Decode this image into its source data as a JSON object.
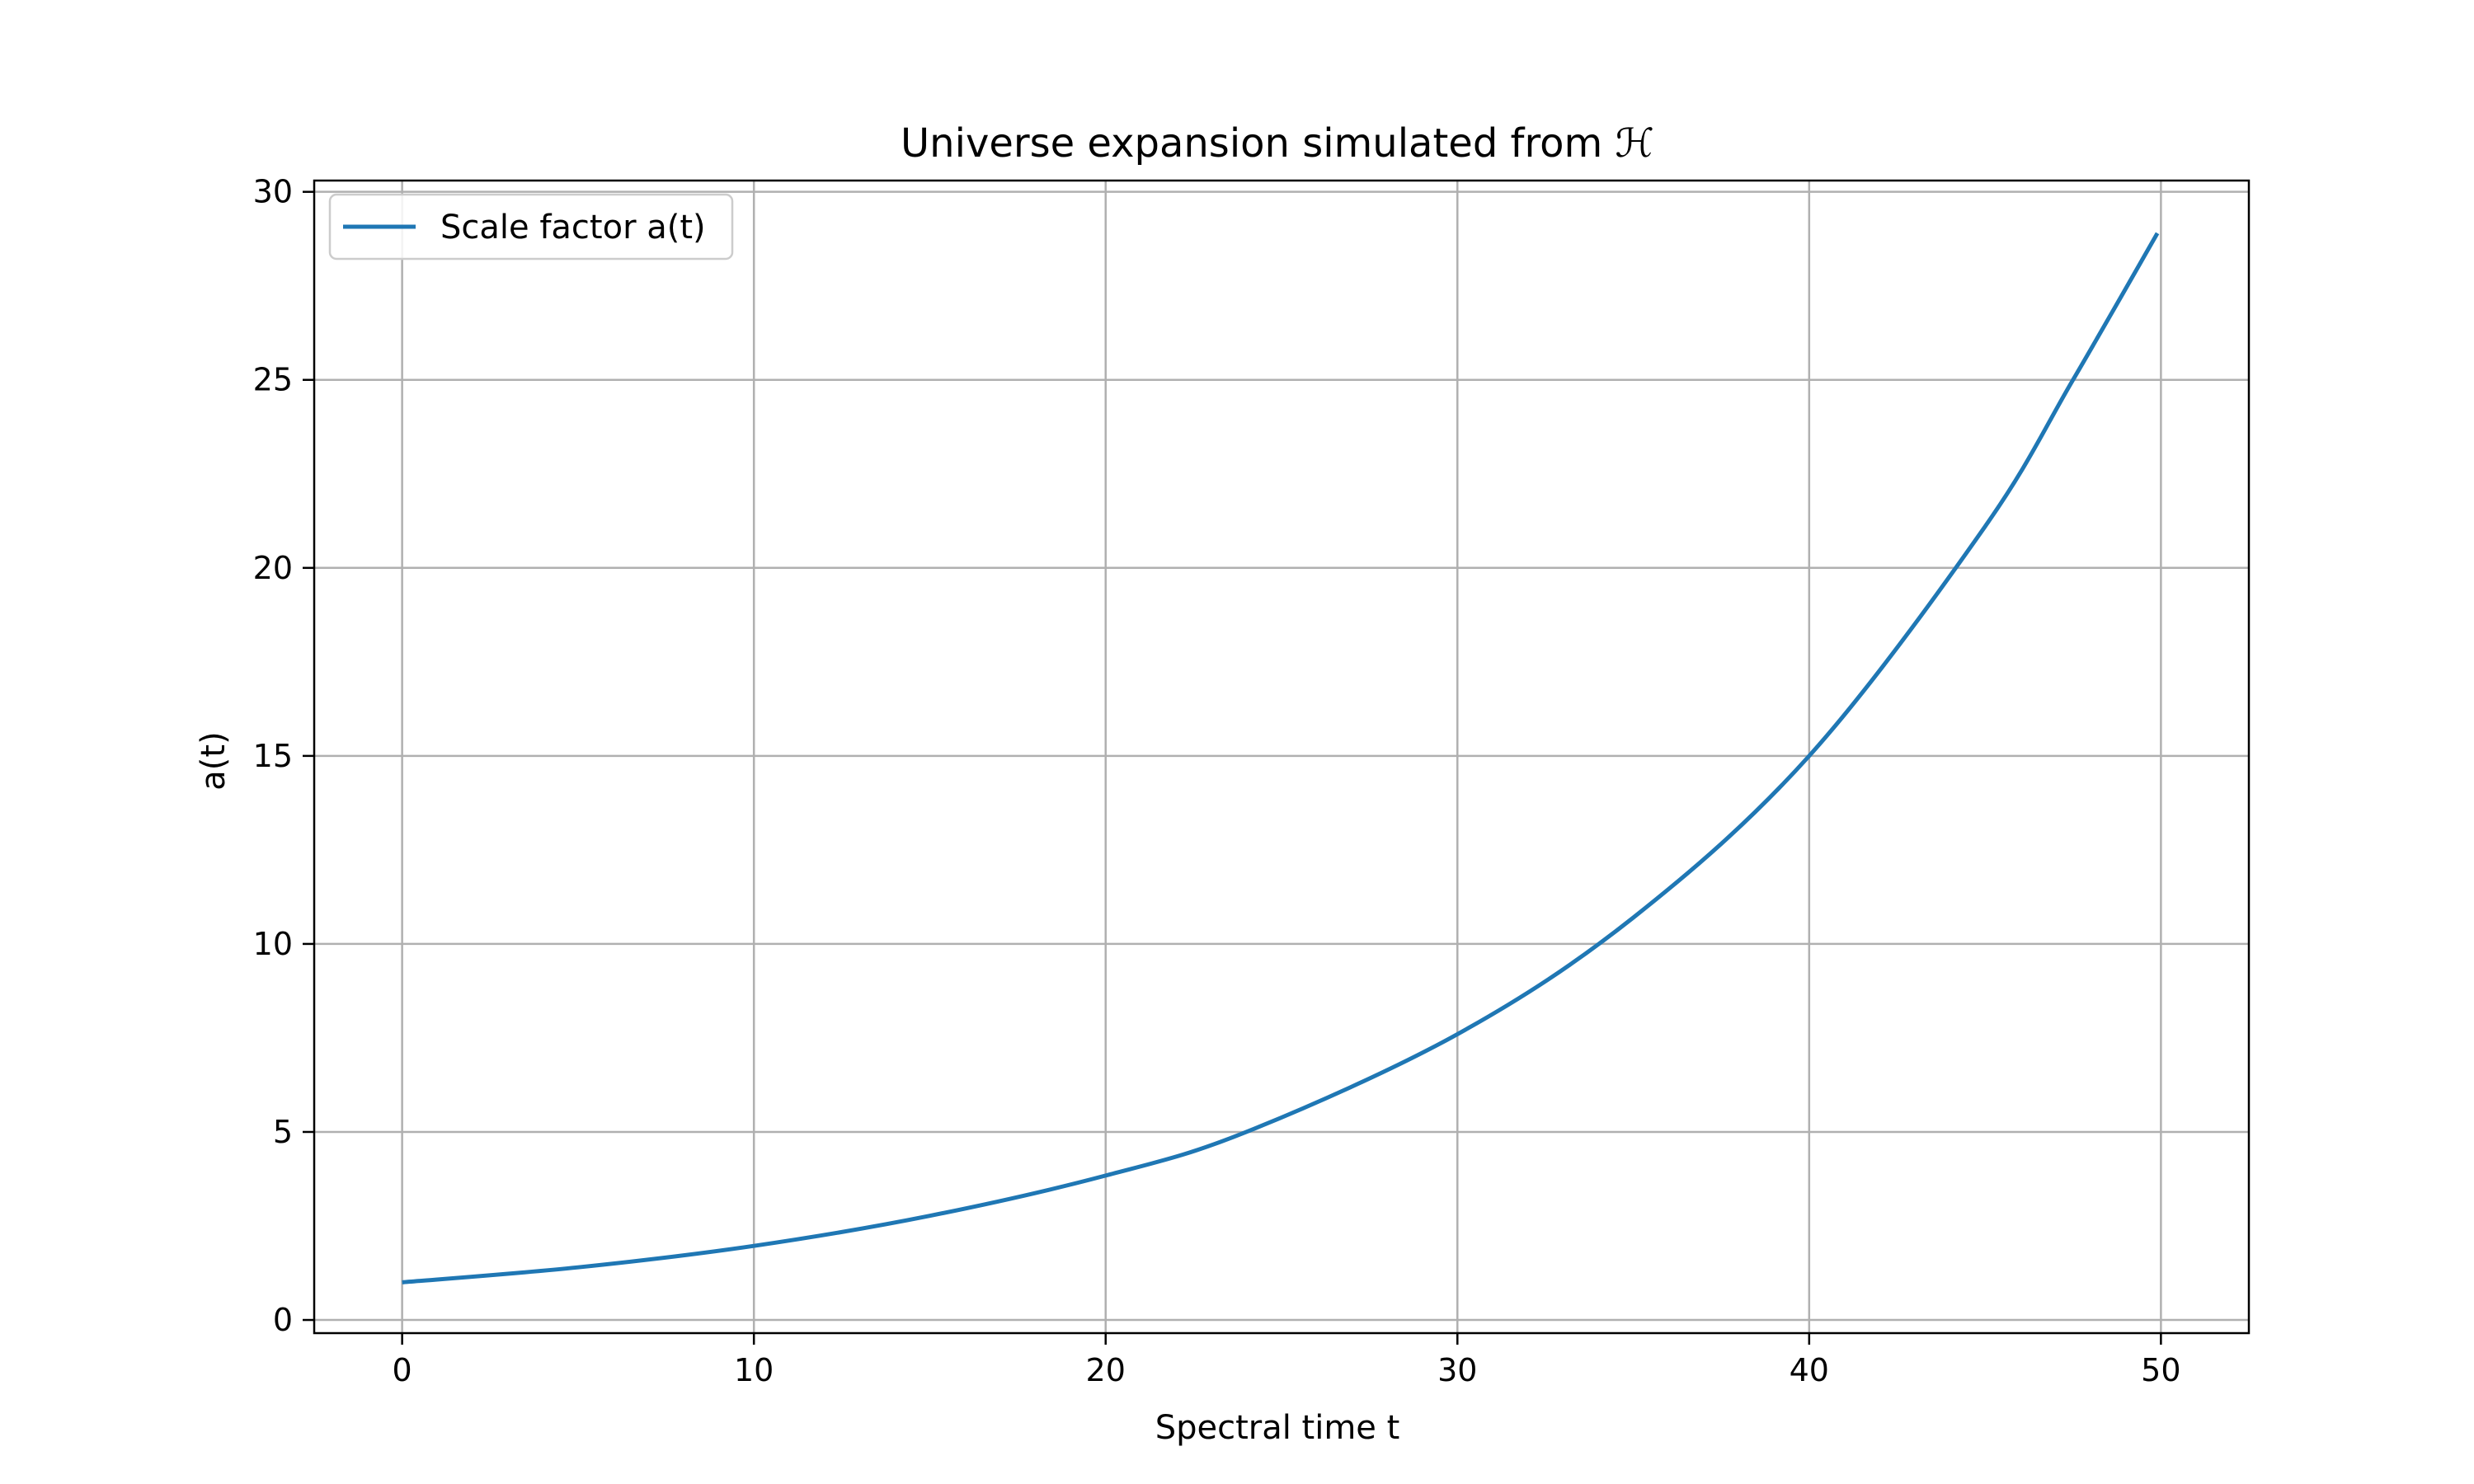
{
  "chart_data": {
    "type": "line",
    "title": "Universe expansion simulated from ℋ",
    "xlabel": "Spectral time t",
    "ylabel": "a(t)",
    "xlim": [
      -2.5,
      52.5
    ],
    "ylim": [
      -0.35,
      30.3
    ],
    "xticks": [
      0,
      10,
      20,
      30,
      40,
      50
    ],
    "yticks": [
      0,
      5,
      10,
      15,
      20,
      25,
      30
    ],
    "grid": true,
    "legend_position": "upper-left",
    "series": [
      {
        "name": "Scale factor a(t)",
        "color": "#1f77b4",
        "x": [
          0,
          5,
          10,
          15,
          20,
          24,
          30,
          35,
          40,
          45,
          47.5,
          49.9
        ],
        "y": [
          1.0,
          1.4,
          1.97,
          2.77,
          3.84,
          5.0,
          7.6,
          10.7,
          15.0,
          21.1,
          25.0,
          28.9
        ]
      }
    ]
  }
}
